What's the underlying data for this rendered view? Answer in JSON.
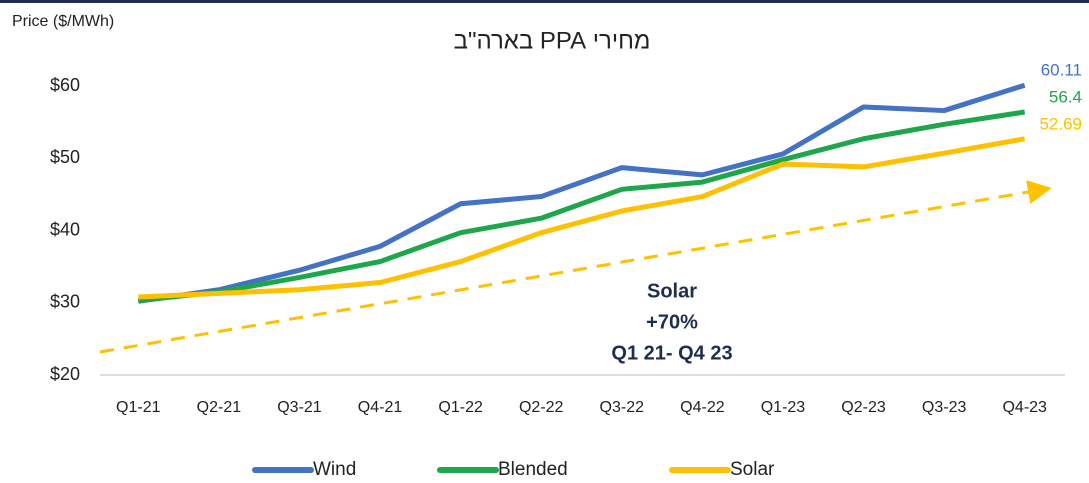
{
  "chart_data": {
    "type": "line",
    "title": "מחירי PPA בארה\"ב",
    "y_label": "Price ($/MWh)",
    "categories": [
      "Q1-21",
      "Q2-21",
      "Q3-21",
      "Q4-21",
      "Q1-22",
      "Q2-22",
      "Q3-22",
      "Q4-22",
      "Q1-23",
      "Q2-23",
      "Q3-23",
      "Q4-23"
    ],
    "series": [
      {
        "name": "Wind",
        "color": "#4472c4",
        "values": [
          30.2,
          31.8,
          34.5,
          37.8,
          43.7,
          44.7,
          48.7,
          47.7,
          50.6,
          57.1,
          56.6,
          60.11
        ]
      },
      {
        "name": "Blended",
        "color": "#1ea64a",
        "values": [
          30.3,
          31.5,
          33.5,
          35.7,
          39.7,
          41.7,
          45.7,
          46.7,
          49.8,
          52.7,
          54.7,
          56.4
        ]
      },
      {
        "name": "Solar",
        "color": "#ffc000",
        "values": [
          30.8,
          31.3,
          31.8,
          32.8,
          35.7,
          39.7,
          42.7,
          44.7,
          49.2,
          48.8,
          50.7,
          52.69
        ]
      }
    ],
    "label_last": true,
    "annotation": [
      "Solar",
      "+70%",
      "Q1 21- Q4 23"
    ],
    "ylim": [
      20,
      60
    ],
    "yticks": [
      {
        "value": 20,
        "label": "$20"
      },
      {
        "value": 30,
        "label": "$30"
      },
      {
        "value": 40,
        "label": "$40"
      },
      {
        "value": 50,
        "label": "$50"
      },
      {
        "value": 60,
        "label": "$60"
      }
    ],
    "grid": false,
    "legend": "bottom"
  }
}
